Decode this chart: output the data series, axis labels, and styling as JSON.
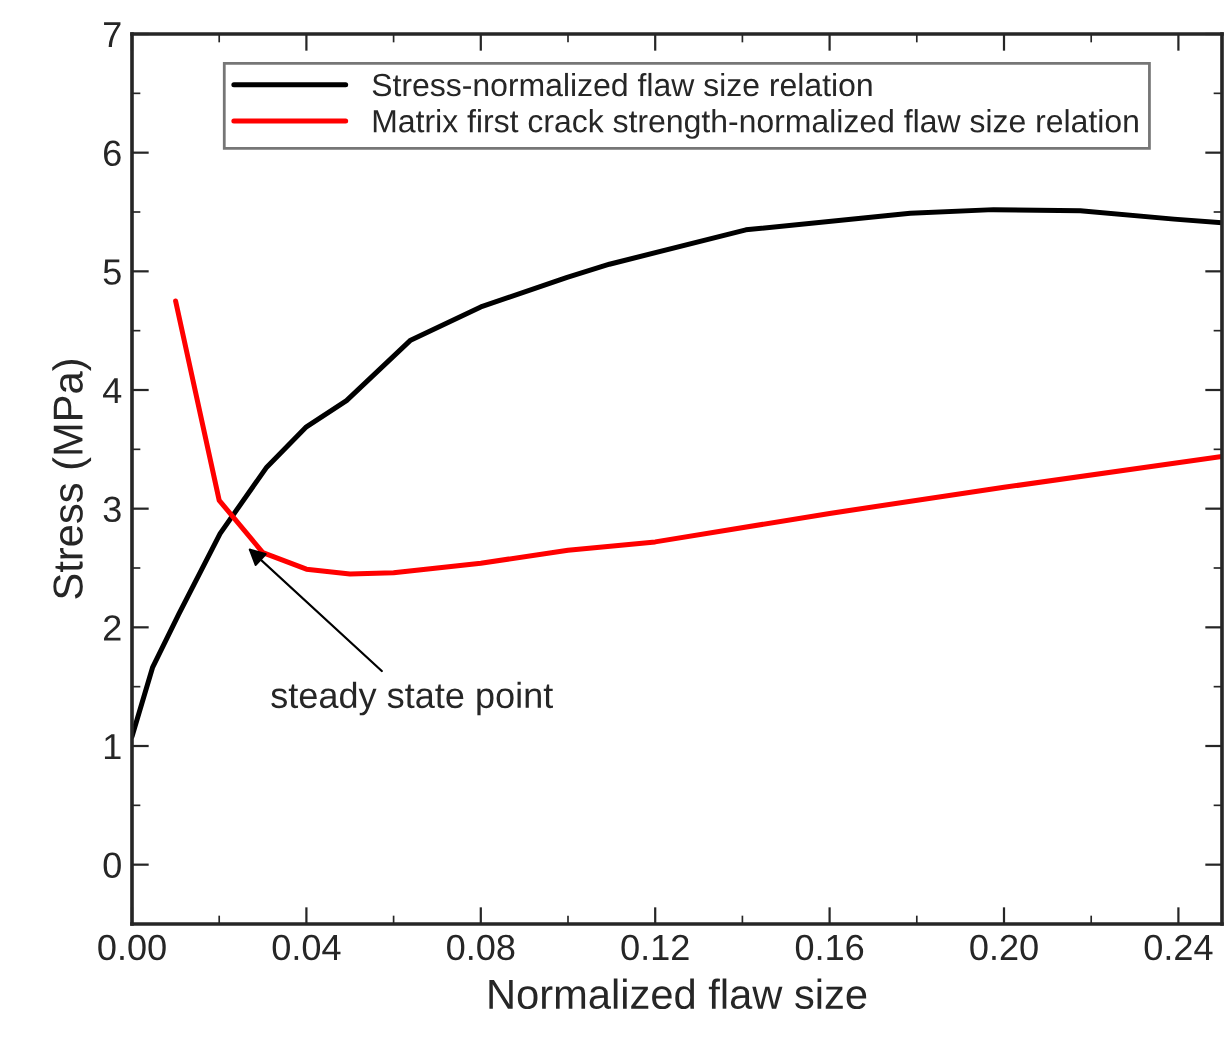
{
  "chart_data": {
    "type": "line",
    "xlabel": "Normalized flaw size",
    "ylabel": "Stress (MPa)",
    "xlim": [
      0,
      0.25
    ],
    "ylim": [
      -0.5,
      7
    ],
    "xticks": [
      {
        "value": 0,
        "label": "0.00"
      },
      {
        "value": 0.04,
        "label": "0.04"
      },
      {
        "value": 0.08,
        "label": "0.08"
      },
      {
        "value": 0.12,
        "label": "0.12"
      },
      {
        "value": 0.16,
        "label": "0.16"
      },
      {
        "value": 0.2,
        "label": "0.20"
      },
      {
        "value": 0.24,
        "label": "0.24"
      }
    ],
    "yticks": [
      0,
      1,
      2,
      3,
      4,
      5,
      6,
      7
    ],
    "grid": false,
    "legend": "top left",
    "line_style": "solid",
    "marker": "none",
    "annotations": [
      {
        "text": "steady state point",
        "x": 0.0257,
        "y": 2.7
      }
    ],
    "series": [
      {
        "name": "Stress-normalized flaw size relation",
        "color": "#000000",
        "x": [
          0,
          0.0047,
          0.0107,
          0.0202,
          0.0309,
          0.04,
          0.0492,
          0.0639,
          0.08,
          0.0998,
          0.1095,
          0.1408,
          0.1785,
          0.1976,
          0.2175,
          0.239,
          0.25
        ],
        "values": [
          1.08,
          1.66,
          2.11,
          2.79,
          3.35,
          3.69,
          3.91,
          4.42,
          4.7,
          4.95,
          5.06,
          5.35,
          5.49,
          5.52,
          5.51,
          5.44,
          5.41
        ]
      },
      {
        "name": "Matrix first crack strength-normalized flaw size relation",
        "color": "#ff0000",
        "x": [
          0.01,
          0.02,
          0.03,
          0.04,
          0.05,
          0.06,
          0.08,
          0.1,
          0.12,
          0.16,
          0.2,
          0.25
        ],
        "values": [
          4.75,
          3.07,
          2.63,
          2.49,
          2.45,
          2.46,
          2.54,
          2.65,
          2.72,
          2.96,
          3.18,
          3.44
        ]
      }
    ]
  }
}
